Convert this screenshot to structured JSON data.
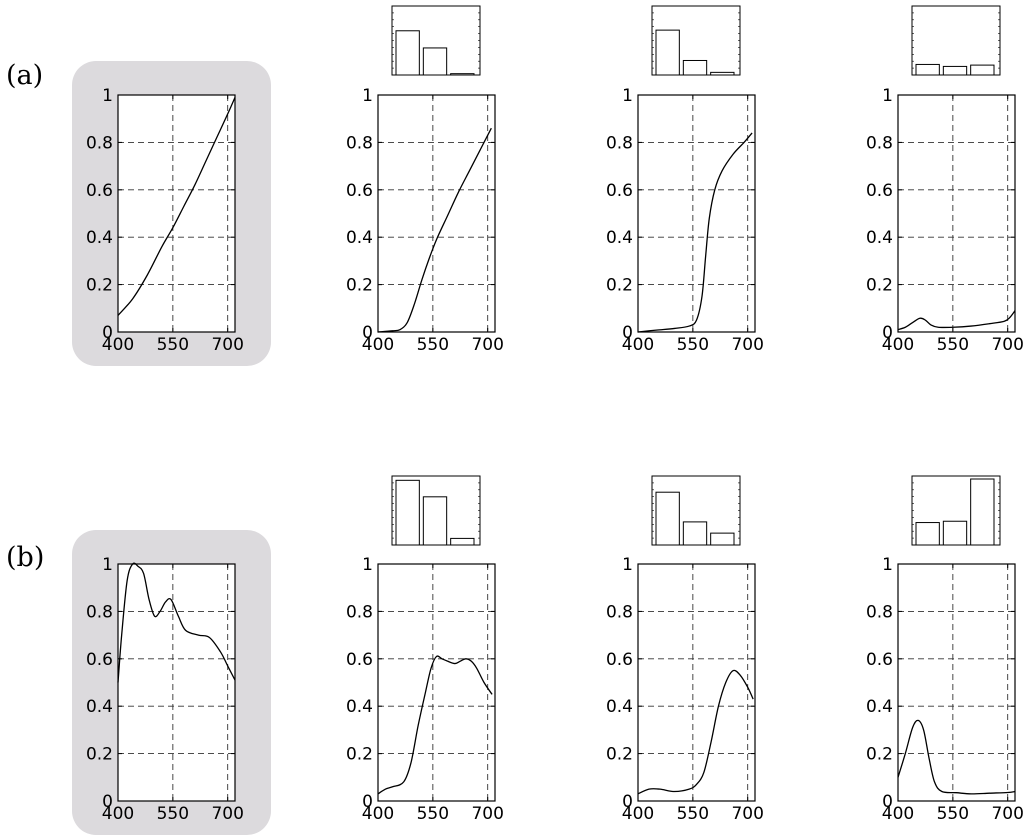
{
  "rows": [
    {
      "label": "(a)"
    },
    {
      "label": "(b)"
    }
  ],
  "colors": {
    "highlight_bg": "#dcdadd",
    "line": "#000000",
    "grid": "#333333"
  },
  "chart_data": [
    {
      "type": "line",
      "row": 0,
      "col": 0,
      "highlighted": true,
      "xlim": [
        400,
        720
      ],
      "ylim": [
        0,
        1
      ],
      "xticks": [
        "400",
        "550",
        "700"
      ],
      "yticks": [
        "0",
        "0.2",
        "0.4",
        "0.6",
        "0.8",
        "1"
      ],
      "grid": true,
      "inset_bars": null,
      "series": [
        {
          "points": [
            [
              400,
              0.07
            ],
            [
              440,
              0.14
            ],
            [
              480,
              0.24
            ],
            [
              520,
              0.36
            ],
            [
              550,
              0.44
            ],
            [
              580,
              0.53
            ],
            [
              610,
              0.62
            ],
            [
              640,
              0.72
            ],
            [
              670,
              0.82
            ],
            [
              700,
              0.92
            ],
            [
              720,
              0.99
            ]
          ]
        }
      ]
    },
    {
      "type": "line",
      "row": 0,
      "col": 1,
      "highlighted": false,
      "xlim": [
        400,
        720
      ],
      "ylim": [
        0,
        1
      ],
      "xticks": [
        "400",
        "550",
        "700"
      ],
      "yticks": [
        "0",
        "0.2",
        "0.4",
        "0.6",
        "0.8",
        "1"
      ],
      "grid": true,
      "inset_bars": [
        0.67,
        0.41,
        0.02
      ],
      "series": [
        {
          "points": [
            [
              400,
              0.0
            ],
            [
              440,
              0.005
            ],
            [
              460,
              0.01
            ],
            [
              480,
              0.04
            ],
            [
              500,
              0.12
            ],
            [
              520,
              0.22
            ],
            [
              540,
              0.31
            ],
            [
              560,
              0.39
            ],
            [
              590,
              0.49
            ],
            [
              620,
              0.59
            ],
            [
              650,
              0.68
            ],
            [
              680,
              0.77
            ],
            [
              710,
              0.86
            ]
          ]
        }
      ]
    },
    {
      "type": "line",
      "row": 0,
      "col": 2,
      "highlighted": false,
      "xlim": [
        400,
        720
      ],
      "ylim": [
        0,
        1
      ],
      "xticks": [
        "400",
        "550",
        "700"
      ],
      "yticks": [
        "0",
        "0.2",
        "0.4",
        "0.6",
        "0.8",
        "1"
      ],
      "grid": true,
      "inset_bars": [
        0.68,
        0.22,
        0.04
      ],
      "series": [
        {
          "points": [
            [
              400,
              0.0
            ],
            [
              450,
              0.008
            ],
            [
              500,
              0.015
            ],
            [
              540,
              0.025
            ],
            [
              560,
              0.05
            ],
            [
              575,
              0.15
            ],
            [
              585,
              0.32
            ],
            [
              595,
              0.48
            ],
            [
              610,
              0.6
            ],
            [
              630,
              0.68
            ],
            [
              660,
              0.75
            ],
            [
              690,
              0.8
            ],
            [
              712,
              0.84
            ]
          ]
        }
      ]
    },
    {
      "type": "line",
      "row": 0,
      "col": 3,
      "highlighted": false,
      "xlim": [
        400,
        720
      ],
      "ylim": [
        0,
        1
      ],
      "xticks": [
        "400",
        "550",
        "700"
      ],
      "yticks": [
        "0",
        "0.2",
        "0.4",
        "0.6",
        "0.8",
        "1"
      ],
      "grid": true,
      "inset_bars": [
        0.16,
        0.13,
        0.15
      ],
      "series": [
        {
          "points": [
            [
              400,
              0.01
            ],
            [
              420,
              0.02
            ],
            [
              440,
              0.04
            ],
            [
              460,
              0.058
            ],
            [
              475,
              0.05
            ],
            [
              490,
              0.03
            ],
            [
              510,
              0.02
            ],
            [
              550,
              0.02
            ],
            [
              600,
              0.025
            ],
            [
              650,
              0.035
            ],
            [
              690,
              0.045
            ],
            [
              705,
              0.06
            ],
            [
              720,
              0.09
            ]
          ]
        }
      ]
    },
    {
      "type": "line",
      "row": 1,
      "col": 0,
      "highlighted": true,
      "xlim": [
        400,
        720
      ],
      "ylim": [
        0,
        1
      ],
      "xticks": [
        "400",
        "550",
        "700"
      ],
      "yticks": [
        "0",
        "0.2",
        "0.4",
        "0.6",
        "0.8",
        "1"
      ],
      "grid": true,
      "inset_bars": null,
      "series": [
        {
          "points": [
            [
              400,
              0.5
            ],
            [
              410,
              0.7
            ],
            [
              425,
              0.93
            ],
            [
              440,
              1.0
            ],
            [
              455,
              0.99
            ],
            [
              470,
              0.96
            ],
            [
              485,
              0.85
            ],
            [
              500,
              0.78
            ],
            [
              515,
              0.8
            ],
            [
              530,
              0.84
            ],
            [
              545,
              0.85
            ],
            [
              565,
              0.78
            ],
            [
              585,
              0.72
            ],
            [
              620,
              0.7
            ],
            [
              650,
              0.69
            ],
            [
              680,
              0.63
            ],
            [
              700,
              0.57
            ],
            [
              720,
              0.51
            ]
          ]
        }
      ]
    },
    {
      "type": "line",
      "row": 1,
      "col": 1,
      "highlighted": false,
      "xlim": [
        400,
        720
      ],
      "ylim": [
        0,
        1
      ],
      "xticks": [
        "400",
        "550",
        "700"
      ],
      "yticks": [
        "0",
        "0.2",
        "0.4",
        "0.6",
        "0.8",
        "1"
      ],
      "grid": true,
      "inset_bars": [
        0.98,
        0.73,
        0.1
      ],
      "series": [
        {
          "points": [
            [
              400,
              0.03
            ],
            [
              420,
              0.05
            ],
            [
              440,
              0.06
            ],
            [
              470,
              0.08
            ],
            [
              490,
              0.16
            ],
            [
              510,
              0.32
            ],
            [
              530,
              0.46
            ],
            [
              545,
              0.56
            ],
            [
              560,
              0.61
            ],
            [
              575,
              0.6
            ],
            [
              590,
              0.59
            ],
            [
              610,
              0.58
            ],
            [
              625,
              0.59
            ],
            [
              640,
              0.6
            ],
            [
              655,
              0.59
            ],
            [
              670,
              0.56
            ],
            [
              690,
              0.5
            ],
            [
              712,
              0.45
            ]
          ]
        }
      ]
    },
    {
      "type": "line",
      "row": 1,
      "col": 2,
      "highlighted": false,
      "xlim": [
        400,
        720
      ],
      "ylim": [
        0,
        1
      ],
      "xticks": [
        "400",
        "550",
        "700"
      ],
      "yticks": [
        "0",
        "0.2",
        "0.4",
        "0.6",
        "0.8",
        "1"
      ],
      "grid": true,
      "inset_bars": [
        0.8,
        0.35,
        0.18
      ],
      "series": [
        {
          "points": [
            [
              400,
              0.03
            ],
            [
              430,
              0.05
            ],
            [
              460,
              0.05
            ],
            [
              500,
              0.04
            ],
            [
              540,
              0.05
            ],
            [
              560,
              0.07
            ],
            [
              580,
              0.12
            ],
            [
              600,
              0.25
            ],
            [
              620,
              0.4
            ],
            [
              640,
              0.5
            ],
            [
              660,
              0.55
            ],
            [
              680,
              0.53
            ],
            [
              700,
              0.48
            ],
            [
              715,
              0.43
            ]
          ]
        }
      ]
    },
    {
      "type": "line",
      "row": 1,
      "col": 3,
      "highlighted": false,
      "xlim": [
        400,
        720
      ],
      "ylim": [
        0,
        1
      ],
      "xticks": [
        "400",
        "550",
        "700"
      ],
      "yticks": [
        "0",
        "0.2",
        "0.4",
        "0.6",
        "0.8",
        "1"
      ],
      "grid": true,
      "inset_bars": [
        0.34,
        0.36,
        1.0
      ],
      "series": [
        {
          "points": [
            [
              400,
              0.1
            ],
            [
              420,
              0.2
            ],
            [
              440,
              0.31
            ],
            [
              455,
              0.34
            ],
            [
              470,
              0.3
            ],
            [
              485,
              0.18
            ],
            [
              500,
              0.08
            ],
            [
              520,
              0.04
            ],
            [
              560,
              0.035
            ],
            [
              600,
              0.03
            ],
            [
              650,
              0.033
            ],
            [
              700,
              0.036
            ],
            [
              720,
              0.04
            ]
          ]
        }
      ]
    }
  ]
}
